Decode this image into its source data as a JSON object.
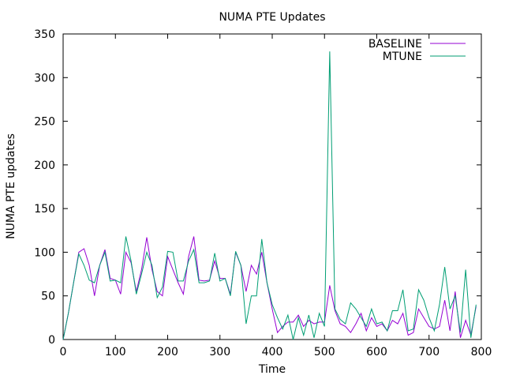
{
  "chart_data": {
    "type": "line",
    "title": "NUMA PTE Updates",
    "xlabel": "Time",
    "ylabel": "NUMA PTE updates",
    "xlim": [
      0,
      800
    ],
    "ylim": [
      0,
      350
    ],
    "xticks": [
      0,
      100,
      200,
      300,
      400,
      500,
      600,
      700,
      800
    ],
    "yticks": [
      0,
      50,
      100,
      150,
      200,
      250,
      300,
      350
    ],
    "legend_position": "top-right",
    "x": [
      0,
      10,
      20,
      30,
      40,
      50,
      60,
      70,
      80,
      90,
      100,
      110,
      120,
      130,
      140,
      150,
      160,
      170,
      180,
      190,
      200,
      210,
      220,
      230,
      240,
      250,
      260,
      270,
      280,
      290,
      300,
      310,
      320,
      330,
      340,
      350,
      360,
      370,
      380,
      390,
      400,
      410,
      420,
      430,
      440,
      450,
      460,
      470,
      480,
      490,
      500,
      510,
      520,
      530,
      540,
      550,
      560,
      570,
      580,
      590,
      600,
      610,
      620,
      630,
      640,
      650,
      660,
      670,
      680,
      690,
      700,
      710,
      720,
      730,
      740,
      750,
      760,
      770,
      780,
      790
    ],
    "series": [
      {
        "name": "BASELINE",
        "color": "#9400d3",
        "values": [
          0,
          30,
          65,
          100,
          104,
          85,
          50,
          85,
          103,
          70,
          68,
          52,
          100,
          88,
          55,
          80,
          117,
          80,
          55,
          50,
          95,
          80,
          65,
          52,
          95,
          118,
          68,
          67,
          68,
          90,
          70,
          70,
          52,
          100,
          85,
          55,
          85,
          75,
          100,
          65,
          35,
          8,
          15,
          20,
          20,
          28,
          15,
          22,
          18,
          20,
          20,
          62,
          33,
          18,
          15,
          8,
          18,
          30,
          10,
          25,
          15,
          18,
          10,
          22,
          18,
          30,
          5,
          8,
          35,
          25,
          15,
          12,
          15,
          45,
          10,
          55,
          2,
          22,
          5,
          38
        ]
      },
      {
        "name": "MTUNE",
        "color": "#009e73",
        "values": [
          0,
          30,
          65,
          98,
          85,
          68,
          65,
          85,
          100,
          67,
          68,
          65,
          118,
          90,
          52,
          75,
          100,
          85,
          48,
          60,
          101,
          100,
          67,
          67,
          90,
          103,
          65,
          65,
          67,
          99,
          67,
          70,
          50,
          101,
          85,
          18,
          50,
          50,
          115,
          65,
          40,
          25,
          12,
          28,
          0,
          25,
          5,
          28,
          2,
          30,
          15,
          330,
          35,
          23,
          18,
          42,
          35,
          25,
          15,
          35,
          18,
          20,
          10,
          33,
          33,
          57,
          10,
          12,
          57,
          45,
          25,
          10,
          40,
          83,
          35,
          50,
          8,
          80,
          2,
          40
        ]
      }
    ]
  }
}
